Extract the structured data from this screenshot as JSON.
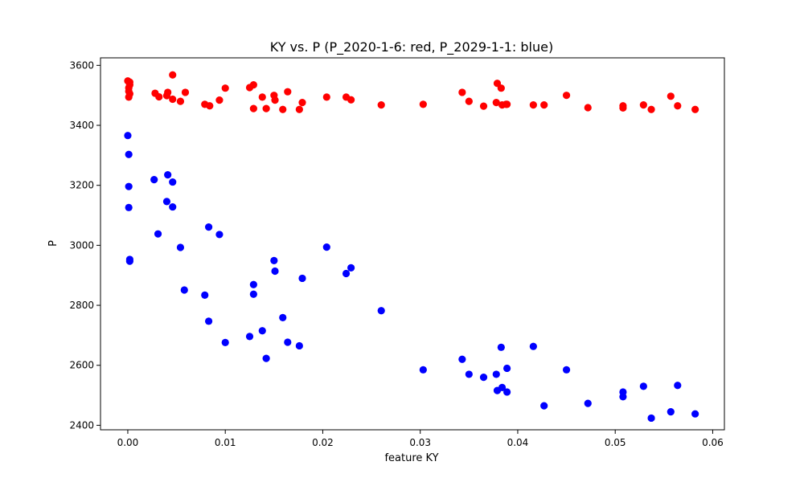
{
  "chart_data": {
    "type": "scatter",
    "title": "KY vs. P (P_2020-1-6: red, P_2029-1-1: blue)",
    "xlabel": "feature KY",
    "ylabel": "P",
    "xlim": [
      -0.0028,
      0.0612
    ],
    "ylim": [
      2385,
      3625
    ],
    "x_ticks": [
      0.0,
      0.01,
      0.02,
      0.03,
      0.04,
      0.05,
      0.06
    ],
    "x_tick_labels": [
      "0.00",
      "0.01",
      "0.02",
      "0.03",
      "0.04",
      "0.05",
      "0.06"
    ],
    "y_ticks": [
      2400,
      2600,
      2800,
      3000,
      3200,
      3400,
      3600
    ],
    "y_tick_labels": [
      "2400",
      "2600",
      "2800",
      "3000",
      "3200",
      "3400",
      "3600"
    ],
    "grid": false,
    "series": [
      {
        "color": "#ff0000",
        "points": [
          [
            0.0,
            3548
          ],
          [
            0.0001,
            3525
          ],
          [
            0.0001,
            3514
          ],
          [
            0.0001,
            3494
          ],
          [
            0.0002,
            3505
          ],
          [
            0.0002,
            3535
          ],
          [
            0.0002,
            3544
          ],
          [
            0.0028,
            3507
          ],
          [
            0.0032,
            3495
          ],
          [
            0.004,
            3499
          ],
          [
            0.0041,
            3510
          ],
          [
            0.0046,
            3568
          ],
          [
            0.0046,
            3487
          ],
          [
            0.0054,
            3480
          ],
          [
            0.0059,
            3510
          ],
          [
            0.0079,
            3470
          ],
          [
            0.0084,
            3465
          ],
          [
            0.0094,
            3484
          ],
          [
            0.01,
            3524
          ],
          [
            0.0125,
            3526
          ],
          [
            0.0129,
            3535
          ],
          [
            0.0129,
            3456
          ],
          [
            0.0138,
            3494
          ],
          [
            0.0142,
            3456
          ],
          [
            0.015,
            3500
          ],
          [
            0.0151,
            3484
          ],
          [
            0.0159,
            3453
          ],
          [
            0.0164,
            3512
          ],
          [
            0.0176,
            3453
          ],
          [
            0.0179,
            3476
          ],
          [
            0.0204,
            3494
          ],
          [
            0.0224,
            3494
          ],
          [
            0.0229,
            3485
          ],
          [
            0.026,
            3468
          ],
          [
            0.0303,
            3470
          ],
          [
            0.0343,
            3510
          ],
          [
            0.035,
            3480
          ],
          [
            0.0365,
            3464
          ],
          [
            0.0378,
            3476
          ],
          [
            0.0379,
            3540
          ],
          [
            0.0383,
            3524
          ],
          [
            0.0384,
            3468
          ],
          [
            0.0388,
            3470
          ],
          [
            0.0389,
            3470
          ],
          [
            0.0416,
            3468
          ],
          [
            0.0427,
            3468
          ],
          [
            0.045,
            3500
          ],
          [
            0.0472,
            3459
          ],
          [
            0.0508,
            3465
          ],
          [
            0.0508,
            3458
          ],
          [
            0.0529,
            3468
          ],
          [
            0.0537,
            3453
          ],
          [
            0.0557,
            3497
          ],
          [
            0.0564,
            3465
          ],
          [
            0.0582,
            3453
          ]
        ]
      },
      {
        "color": "#0000ff",
        "points": [
          [
            0.0,
            3366
          ],
          [
            0.0001,
            3303
          ],
          [
            0.0001,
            3196
          ],
          [
            0.0001,
            3126
          ],
          [
            0.0002,
            2953
          ],
          [
            0.0002,
            2947
          ],
          [
            0.0027,
            3219
          ],
          [
            0.0031,
            3038
          ],
          [
            0.004,
            3146
          ],
          [
            0.0041,
            3235
          ],
          [
            0.0046,
            3211
          ],
          [
            0.0046,
            3128
          ],
          [
            0.0054,
            2993
          ],
          [
            0.0058,
            2851
          ],
          [
            0.0079,
            2834
          ],
          [
            0.0083,
            3061
          ],
          [
            0.0083,
            2747
          ],
          [
            0.0094,
            3036
          ],
          [
            0.01,
            2676
          ],
          [
            0.0125,
            2696
          ],
          [
            0.0129,
            2869
          ],
          [
            0.0129,
            2837
          ],
          [
            0.0138,
            2715
          ],
          [
            0.0142,
            2623
          ],
          [
            0.015,
            2949
          ],
          [
            0.0151,
            2914
          ],
          [
            0.0159,
            2759
          ],
          [
            0.0164,
            2677
          ],
          [
            0.0176,
            2665
          ],
          [
            0.0179,
            2890
          ],
          [
            0.0204,
            2994
          ],
          [
            0.0224,
            2906
          ],
          [
            0.0229,
            2925
          ],
          [
            0.026,
            2782
          ],
          [
            0.0303,
            2585
          ],
          [
            0.0343,
            2620
          ],
          [
            0.035,
            2570
          ],
          [
            0.0365,
            2560
          ],
          [
            0.0378,
            2570
          ],
          [
            0.0379,
            2516
          ],
          [
            0.0383,
            2660
          ],
          [
            0.0384,
            2526
          ],
          [
            0.0389,
            2590
          ],
          [
            0.0389,
            2511
          ],
          [
            0.0416,
            2663
          ],
          [
            0.0427,
            2465
          ],
          [
            0.045,
            2585
          ],
          [
            0.0472,
            2473
          ],
          [
            0.0508,
            2511
          ],
          [
            0.0508,
            2495
          ],
          [
            0.0529,
            2530
          ],
          [
            0.0537,
            2424
          ],
          [
            0.0557,
            2445
          ],
          [
            0.0564,
            2533
          ],
          [
            0.0582,
            2438
          ]
        ]
      }
    ]
  }
}
